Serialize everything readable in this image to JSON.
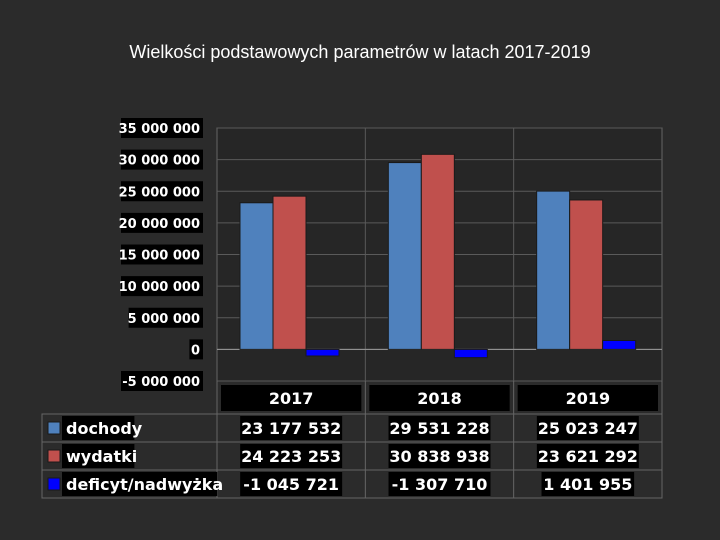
{
  "title": "Wielkości podstawowych parametrów w latach 2017-2019",
  "chart_data": {
    "type": "bar",
    "title": "Wielkości podstawowych parametrów w latach 2017-2019",
    "categories": [
      "2017",
      "2018",
      "2019"
    ],
    "series": [
      {
        "name": "dochody",
        "color": "#4f81bd",
        "values": [
          23177532,
          29531228,
          25023247
        ],
        "labels": [
          "23 177 532",
          "29 531 228",
          "25 023 247"
        ]
      },
      {
        "name": "wydatki",
        "color": "#c0504d",
        "values": [
          24223253,
          30838938,
          23621292
        ],
        "labels": [
          "24 223 253",
          "30 838 938",
          "23 621 292"
        ]
      },
      {
        "name": "deficyt/nadwyżka",
        "color": "#0000ff",
        "values": [
          -1045721,
          -1307710,
          1401955
        ],
        "labels": [
          "-1 045 721",
          "-1 307 710",
          "1 401 955"
        ]
      }
    ],
    "ylim": [
      -5000000,
      35000000
    ],
    "yticks": [
      35000000,
      30000000,
      25000000,
      20000000,
      15000000,
      10000000,
      5000000,
      0,
      -5000000
    ],
    "ytick_labels": [
      "35 000 000",
      "30 000 000",
      "25 000 000",
      "20 000 000",
      "15 000 000",
      "10 000 000",
      "5 000 000",
      "0",
      "-5 000 000"
    ],
    "grid": true,
    "legend": "data-table"
  }
}
